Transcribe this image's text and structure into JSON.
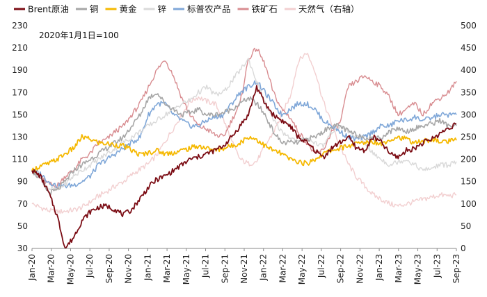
{
  "chart_data": {
    "type": "line",
    "annotation": "2020年1月1日=100",
    "x_ticks": [
      "Jan-20",
      "Mar-20",
      "May-20",
      "Jul-20",
      "Sep-20",
      "Nov-20",
      "Jan-21",
      "Mar-21",
      "May-21",
      "Jul-21",
      "Sep-21",
      "Nov-21",
      "Jan-22",
      "Mar-22",
      "May-22",
      "Jul-22",
      "Sep-22",
      "Nov-22",
      "Jan-23",
      "Mar-23",
      "May-23",
      "Jul-23",
      "Sep-23"
    ],
    "y_left": {
      "min": 30,
      "max": 230,
      "ticks": [
        30,
        50,
        70,
        90,
        110,
        130,
        150,
        170,
        190,
        210,
        230
      ]
    },
    "y_right": {
      "min": 0,
      "max": 500,
      "ticks": [
        0,
        50,
        100,
        150,
        200,
        250,
        300,
        350,
        400,
        450,
        500
      ]
    },
    "series": [
      {
        "name": "天然气（右轴）",
        "color": "#f2cfd0",
        "axis": "right",
        "width": 1.4,
        "values": [
          100,
          92,
          85,
          82,
          84,
          86,
          92,
          104,
          118,
          128,
          140,
          150,
          165,
          178,
          190,
          210,
          240,
          270,
          300,
          330,
          340,
          330,
          325,
          290,
          240,
          200,
          190,
          195,
          230,
          260,
          300,
          340,
          420,
          440,
          400,
          330,
          280,
          230,
          190,
          160,
          140,
          120,
          110,
          100,
          95,
          100,
          105,
          110,
          115,
          120,
          118,
          120
        ]
      },
      {
        "name": "铁矿石",
        "color": "#d88c90",
        "axis": "left",
        "width": 1.4,
        "values": [
          100,
          93,
          88,
          86,
          95,
          100,
          110,
          115,
          125,
          128,
          135,
          140,
          150,
          160,
          175,
          190,
          200,
          185,
          165,
          150,
          140,
          137,
          132,
          130,
          145,
          160,
          200,
          210,
          195,
          170,
          155,
          148,
          135,
          125,
          115,
          118,
          135,
          142,
          175,
          180,
          185,
          180,
          175,
          165,
          150,
          155,
          160,
          150,
          160,
          165,
          170,
          180
        ]
      },
      {
        "name": "标普农产品",
        "color": "#7fa7d8",
        "axis": "left",
        "width": 1.6,
        "values": [
          100,
          97,
          90,
          86,
          86,
          87,
          90,
          95,
          105,
          110,
          115,
          120,
          125,
          130,
          150,
          160,
          160,
          150,
          145,
          140,
          140,
          145,
          148,
          150,
          160,
          170,
          175,
          180,
          170,
          160,
          150,
          155,
          160,
          160,
          155,
          145,
          140,
          135,
          130,
          128,
          130,
          135,
          140,
          140,
          145,
          145,
          148,
          145,
          147,
          150,
          150,
          150
        ]
      },
      {
        "name": "锌",
        "color": "#d9d9d9",
        "axis": "left",
        "width": 1.4,
        "values": [
          100,
          95,
          84,
          82,
          88,
          95,
          100,
          105,
          110,
          115,
          120,
          125,
          130,
          135,
          140,
          145,
          150,
          155,
          160,
          163,
          170,
          175,
          168,
          170,
          180,
          190,
          200,
          180,
          160,
          145,
          135,
          130,
          125,
          130,
          125,
          122,
          135,
          140,
          135,
          130,
          125,
          115,
          110,
          105,
          108,
          110,
          105,
          100,
          102,
          105,
          105,
          108
        ]
      },
      {
        "name": "铜",
        "color": "#a6a6a6",
        "axis": "left",
        "width": 1.6,
        "values": [
          100,
          92,
          80,
          82,
          90,
          100,
          105,
          110,
          115,
          120,
          125,
          130,
          140,
          150,
          165,
          170,
          160,
          155,
          150,
          152,
          155,
          150,
          150,
          152,
          155,
          160,
          165,
          160,
          150,
          135,
          125,
          125,
          125,
          128,
          130,
          135,
          140,
          140,
          135,
          132,
          130,
          128,
          130,
          135,
          138,
          135,
          138,
          140,
          142,
          145,
          140,
          140
        ]
      },
      {
        "name": "黄金",
        "color": "#f5b800",
        "axis": "left",
        "width": 1.8,
        "values": [
          100,
          104,
          106,
          110,
          115,
          120,
          130,
          128,
          125,
          124,
          123,
          122,
          118,
          114,
          116,
          118,
          115,
          116,
          118,
          120,
          122,
          120,
          118,
          120,
          122,
          125,
          130,
          128,
          122,
          118,
          115,
          110,
          108,
          106,
          110,
          115,
          118,
          120,
          122,
          124,
          125,
          126,
          124,
          128,
          130,
          128,
          125,
          126,
          128,
          126,
          126,
          127
        ]
      },
      {
        "name": "Brent原油",
        "color": "#7b0c14",
        "axis": "left",
        "width": 1.8,
        "values": [
          100,
          95,
          80,
          60,
          30,
          40,
          55,
          63,
          67,
          68,
          65,
          60,
          65,
          75,
          85,
          92,
          95,
          100,
          105,
          110,
          112,
          115,
          118,
          122,
          130,
          140,
          150,
          175,
          160,
          150,
          145,
          140,
          130,
          125,
          118,
          112,
          120,
          125,
          130,
          120,
          118,
          130,
          125,
          115,
          112,
          118,
          120,
          125,
          128,
          133,
          138,
          142
        ]
      }
    ]
  }
}
